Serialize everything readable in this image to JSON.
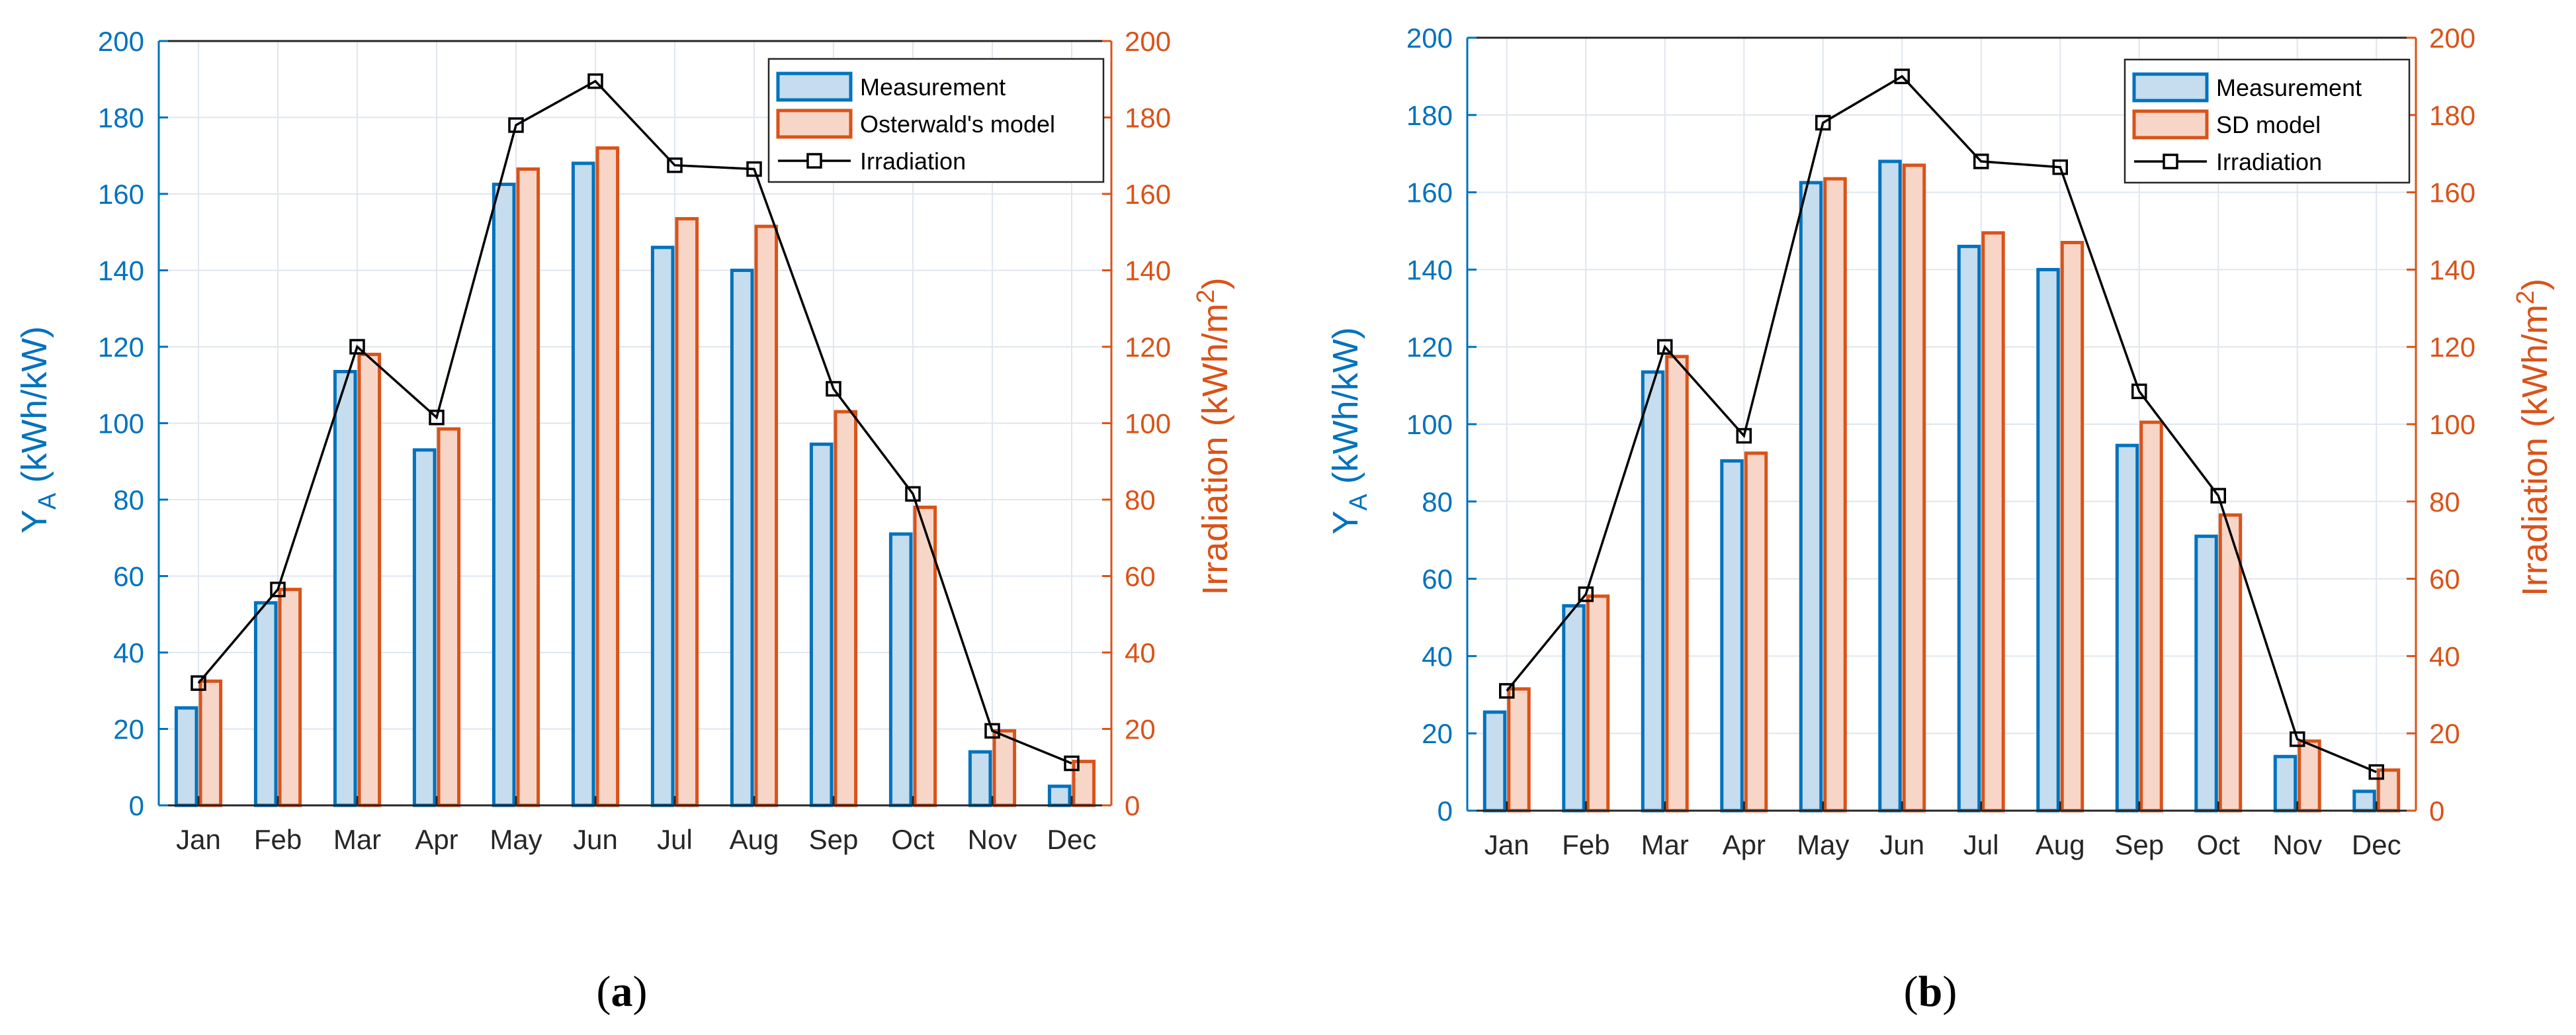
{
  "colors": {
    "left_axis": "#0072BD",
    "right_axis": "#D95319",
    "meas_fill": "#C5DDEE",
    "meas_edge": "#0072BD",
    "model_fill": "#F7D6C8",
    "model_edge": "#D95319",
    "line": "#000000",
    "grid": "#dfe6ee"
  },
  "chart_data": [
    {
      "panel_label": "(a)",
      "type": "bar",
      "ylabel_left": "Y_A (kWh/kW)",
      "ylabel_left_parts": {
        "main": "Y",
        "sub": "A",
        "rest": " (kWh/kW)"
      },
      "ylabel_right": "Irradiation (kWh/m^2)",
      "ylabel_right_parts": {
        "main": "Irradiation (kWh/m",
        "sup": "2",
        "rest": ")"
      },
      "ylim_left": [
        0,
        200
      ],
      "ylim_right": [
        0,
        200
      ],
      "yticks": [
        "0",
        "20",
        "40",
        "60",
        "80",
        "100",
        "120",
        "140",
        "160",
        "180",
        "200"
      ],
      "grid": true,
      "legend_position": "top-right",
      "categories": [
        "Jan",
        "Feb",
        "Mar",
        "Apr",
        "May",
        "Jun",
        "Jul",
        "Aug",
        "Sep",
        "Oct",
        "Nov",
        "Dec"
      ],
      "series": [
        {
          "name": "Measurement",
          "type": "bar",
          "axis": "left",
          "values": [
            25.5,
            53,
            113.5,
            93,
            162.5,
            168,
            146,
            140,
            94.5,
            71,
            14,
            5
          ]
        },
        {
          "name": "Osterwald's model",
          "type": "bar",
          "axis": "left",
          "values": [
            32.5,
            56.5,
            118,
            98.5,
            166.5,
            172,
            153.5,
            151.5,
            103,
            78,
            19.5,
            11.5
          ]
        },
        {
          "name": "Irradiation",
          "type": "line",
          "axis": "right",
          "values": [
            32,
            56.5,
            120,
            101.5,
            178,
            189.5,
            167.5,
            166.5,
            109,
            81.5,
            19.5,
            11
          ]
        }
      ]
    },
    {
      "panel_label": "(b)",
      "type": "bar",
      "ylabel_left": "Y_A (kWh/kW)",
      "ylabel_left_parts": {
        "main": "Y",
        "sub": "A",
        "rest": " (kWh/kW)"
      },
      "ylabel_right": "Irradiation (kWh/m^2)",
      "ylabel_right_parts": {
        "main": "Irradiation (kWh/m",
        "sup": "2",
        "rest": ")"
      },
      "ylim_left": [
        0,
        200
      ],
      "ylim_right": [
        0,
        200
      ],
      "yticks": [
        "0",
        "20",
        "40",
        "60",
        "80",
        "100",
        "120",
        "140",
        "160",
        "180",
        "200"
      ],
      "grid": true,
      "legend_position": "top-right",
      "categories": [
        "Jan",
        "Feb",
        "Mar",
        "Apr",
        "May",
        "Jun",
        "Jul",
        "Aug",
        "Sep",
        "Oct",
        "Nov",
        "Dec"
      ],
      "series": [
        {
          "name": "Measurement",
          "type": "bar",
          "axis": "left",
          "values": [
            25.5,
            53,
            113.5,
            90.5,
            162.5,
            168,
            146,
            140,
            94.5,
            71,
            14,
            5
          ]
        },
        {
          "name": "SD model",
          "type": "bar",
          "axis": "left",
          "values": [
            31.5,
            55.5,
            117.5,
            92.5,
            163.5,
            167,
            149.5,
            147,
            100.5,
            76.5,
            18,
            10.5
          ]
        },
        {
          "name": "Irradiation",
          "type": "line",
          "axis": "right",
          "values": [
            31,
            56,
            120,
            97,
            178,
            190,
            168,
            166.5,
            108.5,
            81.5,
            18.5,
            10
          ]
        }
      ]
    }
  ]
}
